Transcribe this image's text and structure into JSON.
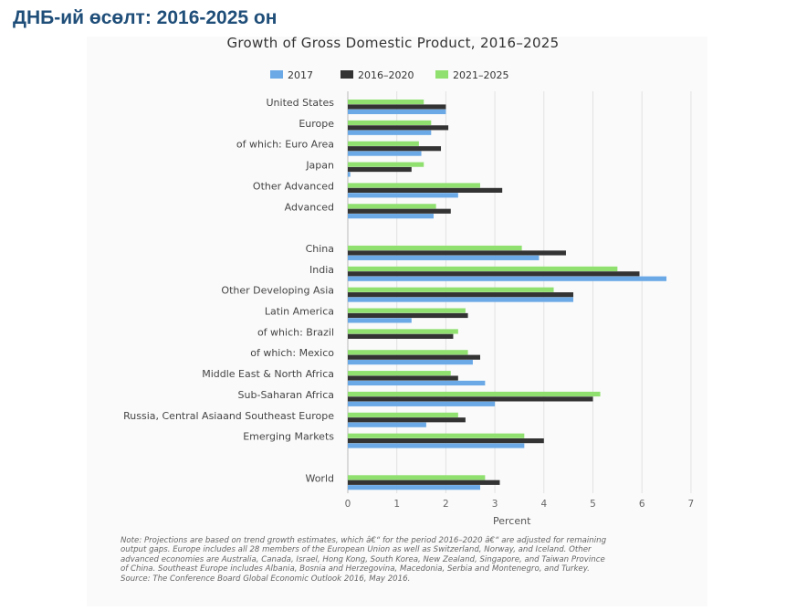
{
  "slide": {
    "title": "ДНБ-ий өсөлт: 2016-2025 он"
  },
  "chart_data": {
    "type": "bar",
    "orientation": "horizontal",
    "title": "Growth of Gross Domestic Product, 2016–2025",
    "xlabel": "Percent",
    "ylabel": "",
    "xlim": [
      0,
      7
    ],
    "xticks": [
      "0",
      "1",
      "2",
      "3",
      "4",
      "5",
      "6",
      "7"
    ],
    "grid": true,
    "legend_position": "top",
    "categories": [
      "United States",
      "Europe",
      "of which: Euro Area",
      "Japan",
      "Other Advanced",
      "Advanced",
      "",
      "China",
      "India",
      "Other Developing Asia",
      "Latin America",
      "of which: Brazil",
      "of which: Mexico",
      "Middle East & North Africa",
      "Sub-Saharan Africa",
      "Russia, Central Asiaand Southeast Europe",
      "Emerging Markets",
      "",
      "World"
    ],
    "series": [
      {
        "name": "2017",
        "color": "#6aa9e6",
        "values": [
          2.0,
          1.7,
          1.5,
          0.05,
          2.25,
          1.75,
          null,
          3.9,
          6.5,
          4.6,
          1.3,
          0.0,
          2.55,
          2.8,
          3.0,
          1.6,
          3.6,
          null,
          2.7
        ]
      },
      {
        "name": "2016–2020",
        "color": "#333333",
        "values": [
          2.0,
          2.05,
          1.9,
          1.3,
          3.15,
          2.1,
          null,
          4.45,
          5.95,
          4.6,
          2.45,
          2.15,
          2.7,
          2.25,
          5.0,
          2.4,
          4.0,
          null,
          3.1
        ]
      },
      {
        "name": "2021–2025",
        "color": "#90e070",
        "values": [
          1.55,
          1.7,
          1.45,
          1.55,
          2.7,
          1.8,
          null,
          3.55,
          5.5,
          4.2,
          2.4,
          2.25,
          2.45,
          2.1,
          5.15,
          2.25,
          3.6,
          null,
          2.8
        ]
      }
    ]
  },
  "note": {
    "lines": [
      "Note: Projections are based on trend growth estimates, which â€“ for the period 2016–2020 â€“ are adjusted for remaining",
      "output gaps. Europe includes all 28 members of the European Union as well as Switzerland, Norway, and Iceland. Other",
      "advanced economies are Australia, Canada, Israel, Hong Kong, South Korea, New Zealand, Singapore, and Taiwan Province",
      "of China. Southeast Europe includes Albania, Bosnia and Herzegovina, Macedonia, Serbia and Montenegro, and Turkey.",
      "Source: The Conference Board Global Economic Outlook 2016, May 2016."
    ]
  }
}
